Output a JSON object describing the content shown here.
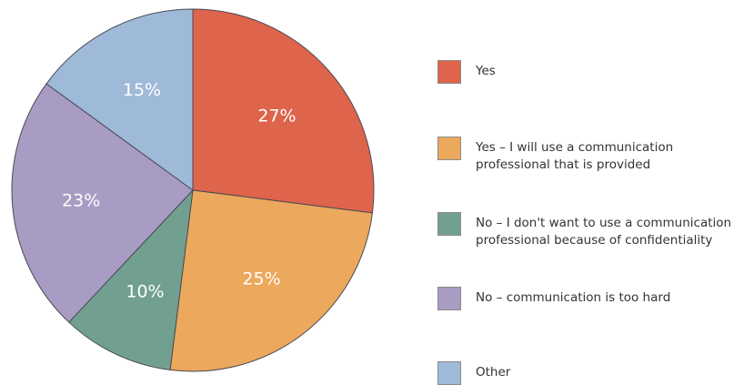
{
  "chart_data": {
    "type": "pie",
    "values": [
      27,
      25,
      10,
      23,
      15
    ],
    "value_labels": [
      "27%",
      "25%",
      "10%",
      "23%",
      "15%"
    ],
    "categories": [
      "Yes",
      "Yes – I will use a communication\nprofessional that is provided",
      "No – I don't want to use a communication\nprofessional because of confidentiality",
      "No – communication is too hard",
      "Other"
    ],
    "colors": [
      "#de644b",
      "#eca85c",
      "#72a090",
      "#a89cc4",
      "#9fbad8"
    ],
    "start": "12 o'clock",
    "direction": "clockwise",
    "legend_position": "right"
  }
}
